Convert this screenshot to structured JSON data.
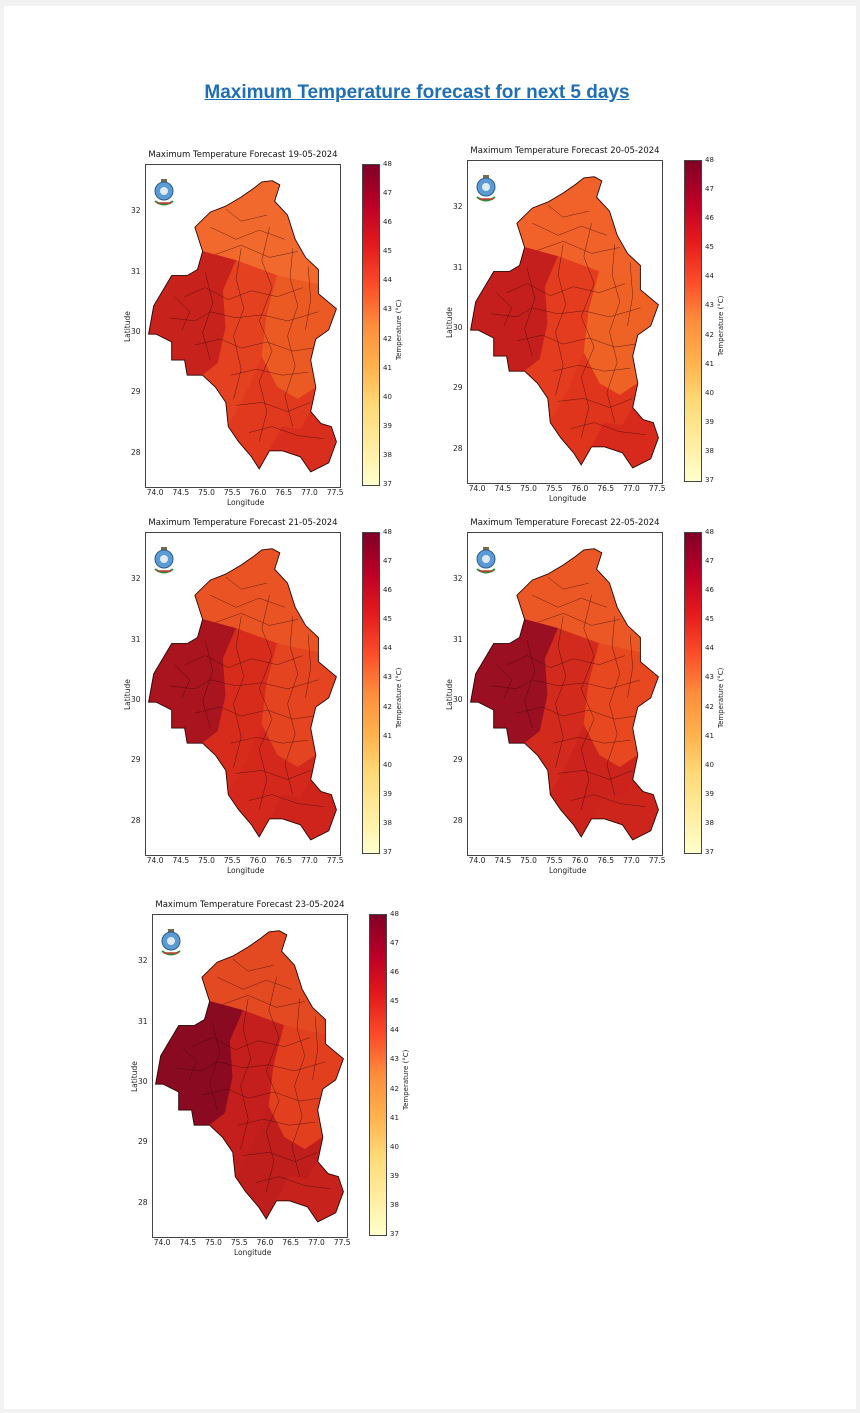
{
  "page": {
    "title": "Maximum Temperature forecast for next 5 days"
  },
  "common": {
    "x_ticks": [
      "74.0",
      "74.5",
      "75.0",
      "75.5",
      "76.0",
      "76.5",
      "77.0",
      "77.5"
    ],
    "y_ticks": [
      "32",
      "31",
      "30",
      "29",
      "28"
    ],
    "xlabel": "Longitude",
    "ylabel": "Latitude",
    "colorbar_ticks": [
      "48",
      "47",
      "46",
      "45",
      "44",
      "43",
      "42",
      "41",
      "40",
      "39",
      "38",
      "37"
    ],
    "colorbar_label": "Temperature (°C)",
    "colorscale": [
      "#ffffcc",
      "#ffeda0",
      "#fed976",
      "#feb24c",
      "#fd8d3c",
      "#fc4e2a",
      "#e31a1c",
      "#bd0026",
      "#800026"
    ],
    "emblem_icon": "imd-emblem-icon"
  },
  "maps": [
    {
      "title": "Maximum Temperature Forecast 19-05-2024",
      "date": "19-05-2024",
      "temperature_range": [
        37,
        48
      ],
      "region_colors": {
        "north": "#f2692d",
        "west": "#c8221c",
        "center": "#e3411f",
        "east": "#ec5a24",
        "south": "#e0391d",
        "tail": "#d92d1d"
      }
    },
    {
      "title": "Maximum Temperature Forecast 20-05-2024",
      "date": "20-05-2024",
      "temperature_range": [
        37,
        48
      ],
      "region_colors": {
        "north": "#f0622a",
        "west": "#c41f1c",
        "center": "#e33c1e",
        "east": "#ee6226",
        "south": "#df351d",
        "tail": "#d7291c"
      }
    },
    {
      "title": "Maximum Temperature Forecast 21-05-2024",
      "date": "21-05-2024",
      "temperature_range": [
        37,
        48
      ],
      "region_colors": {
        "north": "#ea5424",
        "west": "#a9141e",
        "center": "#d72c1c",
        "east": "#e4441f",
        "south": "#d4281c",
        "tail": "#cf241c"
      }
    },
    {
      "title": "Maximum Temperature Forecast 22-05-2024",
      "date": "22-05-2024",
      "temperature_range": [
        37,
        48
      ],
      "region_colors": {
        "north": "#ec5825",
        "west": "#9a0f22",
        "center": "#d22a1c",
        "east": "#e8481f",
        "south": "#cc231c",
        "tail": "#cd251c"
      }
    },
    {
      "title": "Maximum Temperature Forecast 23-05-2024",
      "date": "23-05-2024",
      "temperature_range": [
        37,
        48
      ],
      "region_colors": {
        "north": "#e44a21",
        "west": "#8a0a22",
        "center": "#c41f1c",
        "east": "#e23f1e",
        "south": "#c01e1c",
        "tail": "#c8221c"
      }
    }
  ]
}
